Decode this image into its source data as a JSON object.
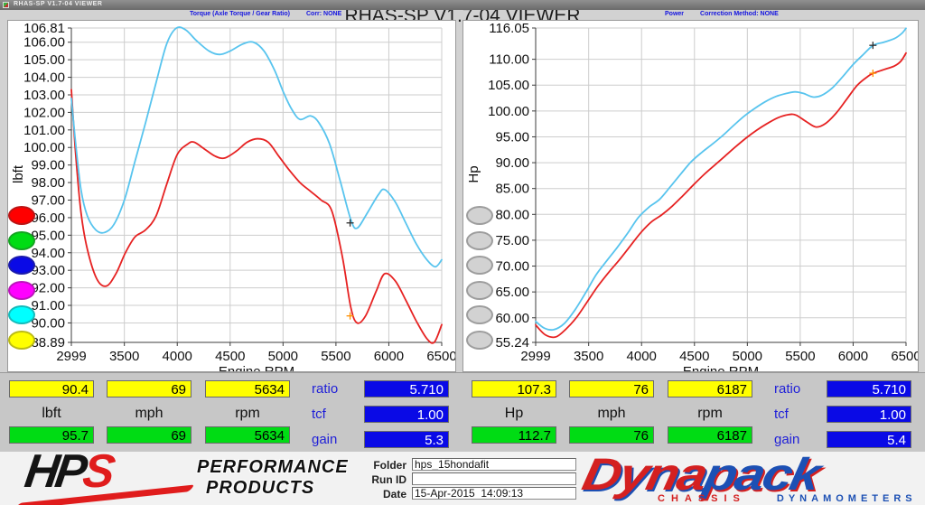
{
  "window": {
    "titlebar_title": "RHAS-SP V1.7-04  VIEWER",
    "main_title": "RHAS-SP V1.7-04  VIEWER"
  },
  "panels": {
    "left": {
      "header": "Torque (Axle Torque / Gear Ratio)",
      "corr": "Corr: NONE"
    },
    "right": {
      "header": "Power",
      "corr": "Correction Method: NONE"
    }
  },
  "legend": {
    "left_colors": [
      "#ff0000",
      "#00dc14",
      "#0a0ae6",
      "#ff00ff",
      "#00ffff",
      "#ffff00"
    ],
    "right_color": "#d2d2d2"
  },
  "chart_data": [
    {
      "type": "line",
      "title": "Torque (Axle Torque / Gear Ratio)",
      "xlabel": "Engine RPM",
      "ylabel": "lbft",
      "xlim": [
        2999,
        6500
      ],
      "ylim": [
        88.89,
        106.81
      ],
      "xticks": [
        2999,
        3500,
        4000,
        4500,
        5000,
        5500,
        6000,
        6500
      ],
      "xtick_labels": [
        "2999",
        "3500",
        "4000",
        "4500",
        "5000",
        "5500",
        "6000",
        "6500"
      ],
      "ytick_values": [
        106.81,
        106,
        105,
        104,
        103,
        102,
        101,
        100,
        99,
        98,
        97,
        96,
        95,
        94,
        93,
        92,
        91,
        90,
        88.89
      ],
      "ytick_labels": [
        "106.81",
        "106.00",
        "105.00",
        "104.00",
        "103.00",
        "102.00",
        "101.00",
        "100.00",
        "99.00",
        "98.00",
        "97.00",
        "96.00",
        "95.00",
        "94.00",
        "93.00",
        "92.00",
        "91.00",
        "90.00",
        "88.89"
      ],
      "grid": true,
      "series": [
        {
          "name": "torque-run-red",
          "color": "#e62222",
          "points": [
            [
              2999,
              103.3
            ],
            [
              3040,
              99.6
            ],
            [
              3090,
              96.3
            ],
            [
              3150,
              94.2
            ],
            [
              3240,
              92.5
            ],
            [
              3330,
              92.1
            ],
            [
              3420,
              92.8
            ],
            [
              3510,
              94.0
            ],
            [
              3600,
              94.9
            ],
            [
              3700,
              95.3
            ],
            [
              3800,
              96.1
            ],
            [
              3900,
              97.9
            ],
            [
              4000,
              99.6
            ],
            [
              4100,
              100.2
            ],
            [
              4160,
              100.3
            ],
            [
              4260,
              99.9
            ],
            [
              4360,
              99.5
            ],
            [
              4450,
              99.4
            ],
            [
              4560,
              99.8
            ],
            [
              4660,
              100.3
            ],
            [
              4760,
              100.5
            ],
            [
              4860,
              100.3
            ],
            [
              4960,
              99.5
            ],
            [
              5060,
              98.7
            ],
            [
              5160,
              98.0
            ],
            [
              5260,
              97.5
            ],
            [
              5360,
              97.0
            ],
            [
              5460,
              96.4
            ],
            [
              5560,
              93.8
            ],
            [
              5640,
              90.9
            ],
            [
              5700,
              90.0
            ],
            [
              5780,
              90.4
            ],
            [
              5880,
              91.8
            ],
            [
              5960,
              92.8
            ],
            [
              6060,
              92.4
            ],
            [
              6160,
              91.3
            ],
            [
              6260,
              90.1
            ],
            [
              6360,
              89.1
            ],
            [
              6430,
              88.9
            ],
            [
              6500,
              89.9
            ]
          ]
        },
        {
          "name": "torque-run-cyan",
          "color": "#58c4ee",
          "points": [
            [
              2999,
              102.8
            ],
            [
              3040,
              100.2
            ],
            [
              3090,
              97.6
            ],
            [
              3150,
              96.1
            ],
            [
              3230,
              95.3
            ],
            [
              3310,
              95.15
            ],
            [
              3400,
              95.6
            ],
            [
              3500,
              97.0
            ],
            [
              3600,
              99.2
            ],
            [
              3700,
              101.4
            ],
            [
              3800,
              103.7
            ],
            [
              3900,
              105.9
            ],
            [
              3990,
              106.8
            ],
            [
              4080,
              106.7
            ],
            [
              4180,
              106.1
            ],
            [
              4300,
              105.5
            ],
            [
              4400,
              105.3
            ],
            [
              4500,
              105.5
            ],
            [
              4620,
              105.9
            ],
            [
              4720,
              106.0
            ],
            [
              4820,
              105.5
            ],
            [
              4920,
              104.4
            ],
            [
              5000,
              103.2
            ],
            [
              5080,
              102.2
            ],
            [
              5160,
              101.6
            ],
            [
              5260,
              101.8
            ],
            [
              5340,
              101.4
            ],
            [
              5440,
              100.2
            ],
            [
              5540,
              98.1
            ],
            [
              5640,
              95.9
            ],
            [
              5700,
              95.4
            ],
            [
              5800,
              96.3
            ],
            [
              5900,
              97.3
            ],
            [
              5960,
              97.6
            ],
            [
              6060,
              96.9
            ],
            [
              6160,
              95.7
            ],
            [
              6260,
              94.5
            ],
            [
              6360,
              93.6
            ],
            [
              6440,
              93.2
            ],
            [
              6500,
              93.6
            ]
          ]
        }
      ],
      "cursor_markers": [
        {
          "rpm": 5634,
          "value": 90.4,
          "color": "#ff9000"
        },
        {
          "rpm": 5634,
          "value": 95.7,
          "color": "#303030"
        }
      ]
    },
    {
      "type": "line",
      "title": "Power",
      "xlabel": "Engine RPM",
      "ylabel": "Hp",
      "xlim": [
        2999,
        6500
      ],
      "ylim": [
        55.24,
        116.05
      ],
      "xticks": [
        2999,
        3500,
        4000,
        4500,
        5000,
        5500,
        6000,
        6500
      ],
      "xtick_labels": [
        "2999",
        "3500",
        "4000",
        "4500",
        "5000",
        "5500",
        "6000",
        "6500"
      ],
      "ytick_values": [
        116.05,
        110,
        105,
        100,
        95,
        90,
        85,
        80,
        75,
        70,
        65,
        60,
        55.24
      ],
      "ytick_labels": [
        "116.05",
        "110.00",
        "105.00",
        "100.00",
        "95.00",
        "90.00",
        "85.00",
        "80.00",
        "75.00",
        "70.00",
        "65.00",
        "60.00",
        "55.24"
      ],
      "grid": true,
      "series": [
        {
          "name": "power-run-red",
          "color": "#e62222",
          "points": [
            [
              2999,
              58.6
            ],
            [
              3090,
              56.7
            ],
            [
              3190,
              56.3
            ],
            [
              3290,
              57.9
            ],
            [
              3390,
              60.2
            ],
            [
              3490,
              63.2
            ],
            [
              3590,
              66.2
            ],
            [
              3690,
              68.8
            ],
            [
              3790,
              71.2
            ],
            [
              3890,
              73.8
            ],
            [
              3990,
              76.4
            ],
            [
              4090,
              78.5
            ],
            [
              4190,
              79.9
            ],
            [
              4290,
              81.6
            ],
            [
              4390,
              83.6
            ],
            [
              4490,
              85.7
            ],
            [
              4590,
              87.7
            ],
            [
              4690,
              89.5
            ],
            [
              4790,
              91.3
            ],
            [
              4890,
              93.1
            ],
            [
              4990,
              94.8
            ],
            [
              5090,
              96.3
            ],
            [
              5190,
              97.6
            ],
            [
              5290,
              98.7
            ],
            [
              5390,
              99.3
            ],
            [
              5460,
              99.2
            ],
            [
              5560,
              97.9
            ],
            [
              5650,
              96.9
            ],
            [
              5740,
              97.6
            ],
            [
              5840,
              99.6
            ],
            [
              5940,
              102.3
            ],
            [
              6040,
              105.0
            ],
            [
              6140,
              106.7
            ],
            [
              6190,
              107.3
            ],
            [
              6290,
              108.0
            ],
            [
              6390,
              108.7
            ],
            [
              6450,
              109.6
            ],
            [
              6500,
              111.2
            ]
          ]
        },
        {
          "name": "power-run-cyan",
          "color": "#58c4ee",
          "points": [
            [
              2999,
              59.3
            ],
            [
              3080,
              58.0
            ],
            [
              3170,
              57.7
            ],
            [
              3270,
              58.9
            ],
            [
              3370,
              61.5
            ],
            [
              3470,
              64.8
            ],
            [
              3570,
              68.3
            ],
            [
              3670,
              71.0
            ],
            [
              3770,
              73.6
            ],
            [
              3870,
              76.4
            ],
            [
              3970,
              79.4
            ],
            [
              4070,
              81.4
            ],
            [
              4170,
              82.9
            ],
            [
              4270,
              85.3
            ],
            [
              4370,
              87.8
            ],
            [
              4470,
              90.2
            ],
            [
              4570,
              92.0
            ],
            [
              4670,
              93.6
            ],
            [
              4770,
              95.3
            ],
            [
              4870,
              97.2
            ],
            [
              4970,
              99.0
            ],
            [
              5070,
              100.5
            ],
            [
              5170,
              101.8
            ],
            [
              5270,
              102.8
            ],
            [
              5370,
              103.4
            ],
            [
              5450,
              103.7
            ],
            [
              5530,
              103.4
            ],
            [
              5620,
              102.7
            ],
            [
              5700,
              103.0
            ],
            [
              5800,
              104.4
            ],
            [
              5900,
              106.6
            ],
            [
              6000,
              109.0
            ],
            [
              6100,
              111.0
            ],
            [
              6190,
              112.7
            ],
            [
              6290,
              113.3
            ],
            [
              6390,
              114.0
            ],
            [
              6460,
              115.0
            ],
            [
              6500,
              116.0
            ]
          ]
        }
      ],
      "cursor_markers": [
        {
          "rpm": 6187,
          "value": 107.3,
          "color": "#ff9000"
        },
        {
          "rpm": 6187,
          "value": 112.7,
          "color": "#303030"
        }
      ]
    }
  ],
  "left_table": {
    "top_values": [
      "90.4",
      "69",
      "5634"
    ],
    "labels": [
      "lbft",
      "mph",
      "rpm"
    ],
    "bottom_values": [
      "95.7",
      "69",
      "5634"
    ],
    "stats": [
      {
        "label": "ratio",
        "value": "5.710"
      },
      {
        "label": "tcf",
        "value": "1.00"
      },
      {
        "label": "gain",
        "value": "5.3"
      }
    ]
  },
  "right_table": {
    "top_values": [
      "107.3",
      "76",
      "6187"
    ],
    "labels": [
      "Hp",
      "mph",
      "rpm"
    ],
    "bottom_values": [
      "112.7",
      "76",
      "6187"
    ],
    "stats": [
      {
        "label": "ratio",
        "value": "5.710"
      },
      {
        "label": "tcf",
        "value": "1.00"
      },
      {
        "label": "gain",
        "value": "5.4"
      }
    ]
  },
  "footer": {
    "hps": {
      "letters_black": "HP",
      "letter_red": "S",
      "line1": "PERFORMANCE",
      "line2": "PRODUCTS"
    },
    "form": {
      "folder_label": "Folder",
      "folder_value": "hps_15hondafit",
      "runid_label": "Run ID",
      "runid_value": "",
      "date_label": "Date",
      "date_value": "15-Apr-2015  14:09:13"
    },
    "dynapack": {
      "part_red": "Dyna",
      "part_blue": "pack",
      "sub_red": "CHASSIS",
      "sub_blue": "DYNAMOMETERS"
    }
  },
  "colors": {
    "curve_red": "#e62222",
    "curve_cyan": "#58c4ee",
    "cell_yellow": "#ffff00",
    "cell_green": "#00dc14",
    "cell_blue": "#0a0ae6",
    "header_blue": "#1414e0"
  }
}
